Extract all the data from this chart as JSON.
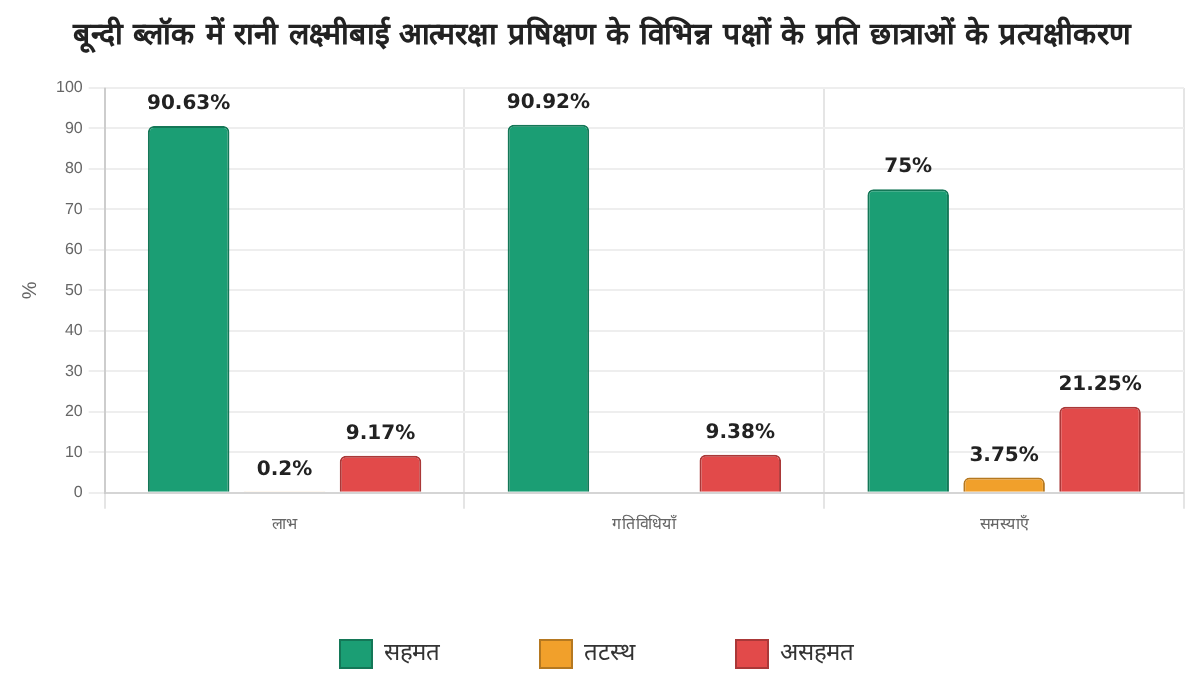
{
  "chart_data": {
    "type": "bar",
    "title": "बून्दी ब्लॉक में रानी लक्ष्मीबाई आत्मरक्षा प्रषिक्षण के विभिन्न पक्षों के प्रति छात्राओं के प्रत्यक्षीकरण",
    "ylabel": "%",
    "categories": [
      "लाभ",
      "गतिविधियाँ",
      "समस्याएँ"
    ],
    "series": [
      {
        "name": "सहमत",
        "color": "#1b9e74",
        "values": [
          90.63,
          90.92,
          75
        ],
        "value_labels": [
          "90.63%",
          "90.92%",
          "75%"
        ]
      },
      {
        "name": "तटस्थ",
        "color": "#f1a02b",
        "values": [
          0.2,
          0,
          3.75
        ],
        "value_labels": [
          "0.2%",
          null,
          "3.75%"
        ]
      },
      {
        "name": "असहमत",
        "color": "#e24a4a",
        "values": [
          9.17,
          9.38,
          21.25
        ],
        "value_labels": [
          "9.17%",
          "9.38%",
          "21.25%"
        ]
      }
    ],
    "ylim": [
      0,
      100
    ],
    "yticks": [
      0,
      10,
      20,
      30,
      40,
      50,
      60,
      70,
      80,
      90,
      100
    ],
    "grid": true,
    "legend": "bottom"
  }
}
